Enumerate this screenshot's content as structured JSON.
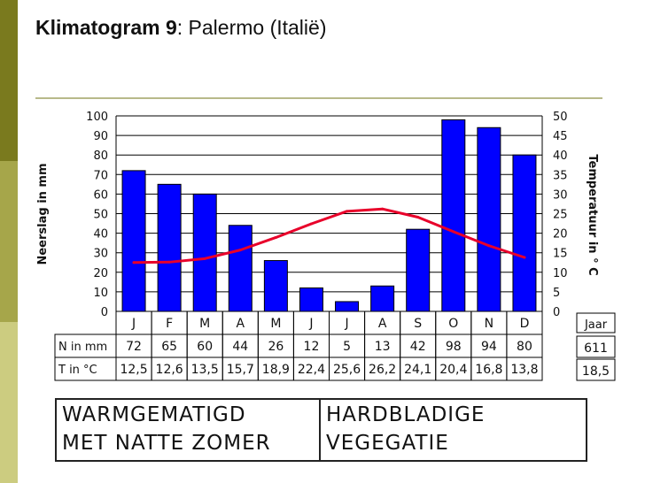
{
  "title": {
    "bold": "Klimatogram 9",
    "rest": ": Palermo (Italië)"
  },
  "theme": {
    "side_bar_colors": [
      "#7a7a1e",
      "#a6a64a",
      "#cccc80"
    ],
    "rule_color": "#b8b98a"
  },
  "chart_data": {
    "type": "bar",
    "categories": [
      "J",
      "F",
      "M",
      "A",
      "M",
      "J",
      "J",
      "A",
      "S",
      "O",
      "N",
      "D"
    ],
    "series": [
      {
        "name": "N in mm",
        "type": "bar",
        "axis": "left",
        "color": "#0000ff",
        "values": [
          72,
          65,
          60,
          44,
          26,
          12,
          5,
          13,
          42,
          98,
          94,
          80
        ]
      },
      {
        "name": "T in °C",
        "type": "line",
        "axis": "right",
        "color": "#e8002a",
        "values": [
          12.5,
          12.6,
          13.5,
          15.7,
          18.9,
          22.4,
          25.6,
          26.2,
          24.1,
          20.4,
          16.8,
          13.8
        ]
      }
    ],
    "ylabel": "Neerslag in mm",
    "y2label": "Temperatuur in ° C",
    "ylim": [
      0,
      100
    ],
    "y2lim": [
      0,
      50
    ],
    "yticks": [
      "0",
      "10",
      "20",
      "30",
      "40",
      "50",
      "60",
      "70",
      "80",
      "90",
      "100"
    ],
    "y2ticks": [
      "0",
      "5",
      "10",
      "15",
      "20",
      "25",
      "30",
      "35",
      "40",
      "45",
      "50"
    ],
    "grid": true,
    "table": {
      "row_labels": [
        "N in mm",
        "T in °C"
      ],
      "rows": [
        [
          "72",
          "65",
          "60",
          "44",
          "26",
          "12",
          "5",
          "13",
          "42",
          "98",
          "94",
          "80"
        ],
        [
          "12,5",
          "12,6",
          "13,5",
          "15,7",
          "18,9",
          "22,4",
          "25,6",
          "26,2",
          "24,1",
          "20,4",
          "16,8",
          "13,8"
        ]
      ],
      "year_header": "Jaar",
      "year_values": [
        "611",
        "18,5"
      ]
    }
  },
  "climate": {
    "left_lines": [
      "WARMGEMATIGD",
      "MET NATTE ZOMER"
    ],
    "right_lines": [
      "HARDBLADIGE",
      "VEGEGATIE"
    ]
  }
}
